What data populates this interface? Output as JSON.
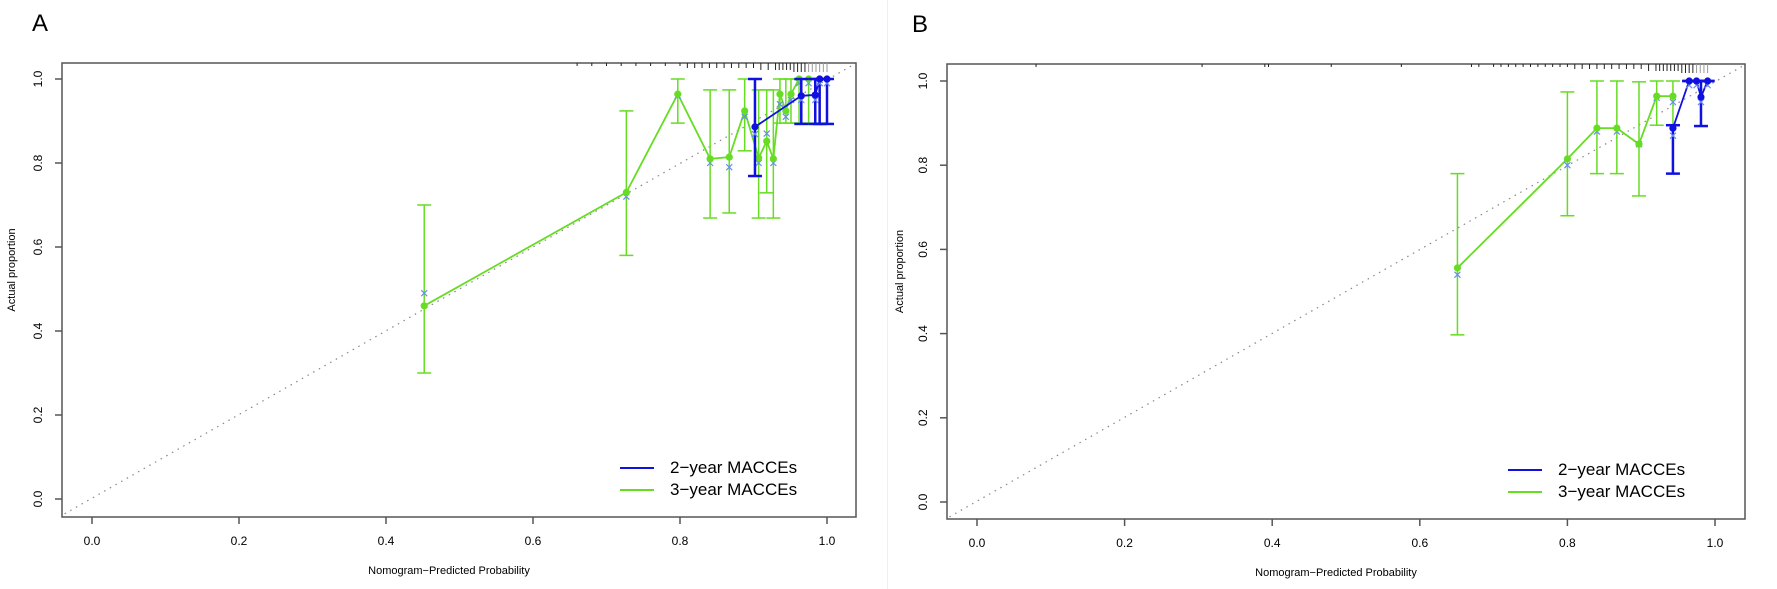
{
  "chart_data": [
    {
      "panel_label": "A",
      "type": "line",
      "subtype": "calibration",
      "title": "",
      "xlabel": "Nomogram−Predicted Probability",
      "ylabel": "Actual proportion",
      "xlim": [
        -0.04,
        1.04
      ],
      "ylim": [
        -0.04,
        1.04
      ],
      "xticks": [
        0.0,
        0.2,
        0.4,
        0.6,
        0.8,
        1.0
      ],
      "xtick_labels": [
        "0.0",
        "0.2",
        "0.4",
        "0.6",
        "0.8",
        "1.0"
      ],
      "yticks": [
        0.0,
        0.2,
        0.4,
        0.6,
        0.8,
        1.0
      ],
      "ytick_labels": [
        "0.0",
        "0.2",
        "0.4",
        "0.6",
        "0.8",
        "1.0"
      ],
      "grid": false,
      "reference_line": {
        "style": "dotted",
        "color": "#888888",
        "from": [
          -0.04,
          -0.04
        ],
        "to": [
          1.04,
          1.04
        ]
      },
      "legend": {
        "position": "bottom-right",
        "entries": [
          {
            "label": "2−year MACCEs",
            "color": "#1010e0"
          },
          {
            "label": "3−year MACCEs",
            "color": "#66dd22"
          }
        ]
      },
      "series": [
        {
          "name": "3−year MACCEs",
          "color": "#66dd22",
          "x": [
            0.452,
            0.727,
            0.797,
            0.841,
            0.867,
            0.888,
            0.907,
            0.918,
            0.927,
            0.936,
            0.944,
            0.951,
            0.962,
            0.975,
            0.99
          ],
          "y": [
            0.46,
            0.73,
            0.964,
            0.81,
            0.814,
            0.924,
            0.812,
            0.852,
            0.81,
            0.964,
            0.924,
            0.964,
            1.0,
            1.0,
            1.0
          ],
          "lower": [
            0.3,
            0.58,
            0.895,
            0.669,
            0.681,
            0.829,
            0.669,
            0.729,
            0.669,
            0.895,
            0.895,
            0.895,
            0.895,
            0.895,
            0.895
          ],
          "upper": [
            0.7,
            0.924,
            1.0,
            0.974,
            0.974,
            1.0,
            0.974,
            0.974,
            0.974,
            1.0,
            1.0,
            1.0,
            1.0,
            1.0,
            1.0
          ],
          "bias_corrected_x": [
            0.452,
            0.727,
            0.797,
            0.841,
            0.867,
            0.888,
            0.907,
            0.918,
            0.927,
            0.936,
            0.944,
            0.951,
            0.962,
            0.975,
            0.99
          ],
          "bias_corrected_y": [
            0.49,
            0.72,
            0.96,
            0.8,
            0.79,
            0.91,
            0.8,
            0.87,
            0.8,
            0.94,
            0.91,
            0.95,
            0.99,
            0.99,
            0.99
          ]
        },
        {
          "name": "2−year MACCEs",
          "color": "#1010e0",
          "x": [
            0.902,
            0.965,
            0.984,
            0.99,
            1.0
          ],
          "y": [
            0.886,
            0.96,
            0.962,
            1.0,
            1.0
          ],
          "lower": [
            0.769,
            0.893,
            0.893,
            0.893,
            0.893
          ],
          "upper": [
            1.0,
            1.0,
            1.0,
            1.0,
            1.0
          ],
          "bias_corrected_x": [
            0.902,
            0.965,
            0.984,
            0.99,
            1.0
          ],
          "bias_corrected_y": [
            0.869,
            0.95,
            0.95,
            0.99,
            0.99
          ]
        }
      ],
      "rug_x": [
        0.66,
        0.68,
        0.7,
        0.72,
        0.74,
        0.76,
        0.78,
        0.8,
        0.81,
        0.82,
        0.83,
        0.84,
        0.85,
        0.86,
        0.87,
        0.88,
        0.89,
        0.9,
        0.91,
        0.92,
        0.93,
        0.935,
        0.94,
        0.945,
        0.95,
        0.955,
        0.96,
        0.965,
        0.97,
        0.975,
        0.98,
        0.985,
        0.99,
        0.995,
        1.0
      ]
    },
    {
      "panel_label": "B",
      "type": "line",
      "subtype": "calibration",
      "title": "",
      "xlabel": "Nomogram−Predicted Probability",
      "ylabel": "Actual proportion",
      "xlim": [
        -0.04,
        1.04
      ],
      "ylim": [
        -0.04,
        1.04
      ],
      "xticks": [
        0.0,
        0.2,
        0.4,
        0.6,
        0.8,
        1.0
      ],
      "xtick_labels": [
        "0.0",
        "0.2",
        "0.4",
        "0.6",
        "0.8",
        "1.0"
      ],
      "yticks": [
        0.0,
        0.2,
        0.4,
        0.6,
        0.8,
        1.0
      ],
      "ytick_labels": [
        "0.0",
        "0.2",
        "0.4",
        "0.6",
        "0.8",
        "1.0"
      ],
      "grid": false,
      "reference_line": {
        "style": "dotted",
        "color": "#888888",
        "from": [
          -0.04,
          -0.04
        ],
        "to": [
          1.04,
          1.04
        ]
      },
      "legend": {
        "position": "bottom-right",
        "entries": [
          {
            "label": "2−year MACCEs",
            "color": "#1010e0"
          },
          {
            "label": "3−year MACCEs",
            "color": "#66dd22"
          }
        ]
      },
      "series": [
        {
          "name": "3−year MACCEs",
          "color": "#66dd22",
          "x": [
            0.651,
            0.8,
            0.84,
            0.867,
            0.897,
            0.921,
            0.943
          ],
          "y": [
            0.556,
            0.815,
            0.888,
            0.888,
            0.85,
            0.964,
            0.964
          ],
          "lower": [
            0.397,
            0.68,
            0.78,
            0.78,
            0.727,
            0.895,
            0.895
          ],
          "upper": [
            0.78,
            0.974,
            1.0,
            1.0,
            0.998,
            1.0,
            1.0
          ],
          "bias_corrected_x": [
            0.651,
            0.8,
            0.84,
            0.867,
            0.897,
            0.921,
            0.943
          ],
          "bias_corrected_y": [
            0.54,
            0.8,
            0.88,
            0.88,
            0.85,
            0.96,
            0.95
          ]
        },
        {
          "name": "2−year MACCEs",
          "color": "#1010e0",
          "x": [
            0.943,
            0.965,
            0.975,
            0.981,
            0.99
          ],
          "y": [
            0.888,
            1.0,
            1.0,
            0.962,
            1.0
          ],
          "lower": [
            0.78,
            1.0,
            1.0,
            0.893,
            1.0
          ],
          "upper": [
            0.895,
            1.0,
            1.0,
            1.0,
            1.0
          ],
          "bias_corrected_x": [
            0.943,
            0.965,
            0.975,
            0.981,
            0.99
          ],
          "bias_corrected_y": [
            0.87,
            0.99,
            0.99,
            0.95,
            0.99
          ]
        }
      ],
      "rug_x": [
        0.08,
        0.305,
        0.39,
        0.395,
        0.48,
        0.575,
        0.67,
        0.68,
        0.7,
        0.71,
        0.72,
        0.73,
        0.74,
        0.75,
        0.76,
        0.77,
        0.78,
        0.79,
        0.8,
        0.81,
        0.82,
        0.83,
        0.84,
        0.85,
        0.86,
        0.87,
        0.88,
        0.89,
        0.9,
        0.91,
        0.92,
        0.925,
        0.93,
        0.935,
        0.94,
        0.945,
        0.95,
        0.955,
        0.96,
        0.965,
        0.97,
        0.975,
        0.98,
        0.985,
        0.99
      ]
    }
  ]
}
